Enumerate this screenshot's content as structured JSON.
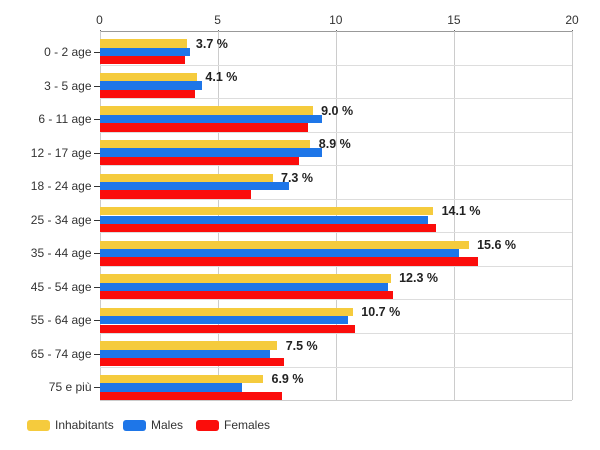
{
  "chart_data": {
    "type": "bar",
    "orientation": "horizontal",
    "title": "",
    "xlabel": "",
    "ylabel": "",
    "xlim": [
      0,
      20
    ],
    "x_ticks": [
      0,
      5,
      10,
      15,
      20
    ],
    "grid": true,
    "legend_position": "bottom-left",
    "categories": [
      "0 - 2 age",
      "3 - 5 age",
      "6 - 11 age",
      "12 - 17 age",
      "18 - 24 age",
      "25 - 34 age",
      "35 - 44 age",
      "45 - 54 age",
      "55 - 64 age",
      "65 - 74 age",
      "75 e più"
    ],
    "series": [
      {
        "name": "Inhabitants",
        "color": "#F5CB3D",
        "values": [
          3.7,
          4.1,
          9.0,
          8.9,
          7.3,
          14.1,
          15.6,
          12.3,
          10.7,
          7.5,
          6.9
        ]
      },
      {
        "name": "Males",
        "color": "#1E76E8",
        "values": [
          3.8,
          4.3,
          9.4,
          9.4,
          8.0,
          13.9,
          15.2,
          12.2,
          10.5,
          7.2,
          6.0
        ]
      },
      {
        "name": "Females",
        "color": "#FB0D0B",
        "values": [
          3.6,
          4.0,
          8.8,
          8.4,
          6.4,
          14.2,
          16.0,
          12.4,
          10.8,
          7.8,
          7.7
        ]
      }
    ],
    "value_labels": [
      "3.7 %",
      "4.1 %",
      "9.0 %",
      "8.9 %",
      "7.3 %",
      "14.1 %",
      "15.6 %",
      "12.3 %",
      "10.7 %",
      "7.5 %",
      "6.9 %"
    ]
  },
  "colors": {
    "background": "#ffffff",
    "axis_line": "#999999",
    "gridline": "#cccccc",
    "row_separator": "#dddddd",
    "text": "#333333",
    "value_label_text": "#222222"
  }
}
